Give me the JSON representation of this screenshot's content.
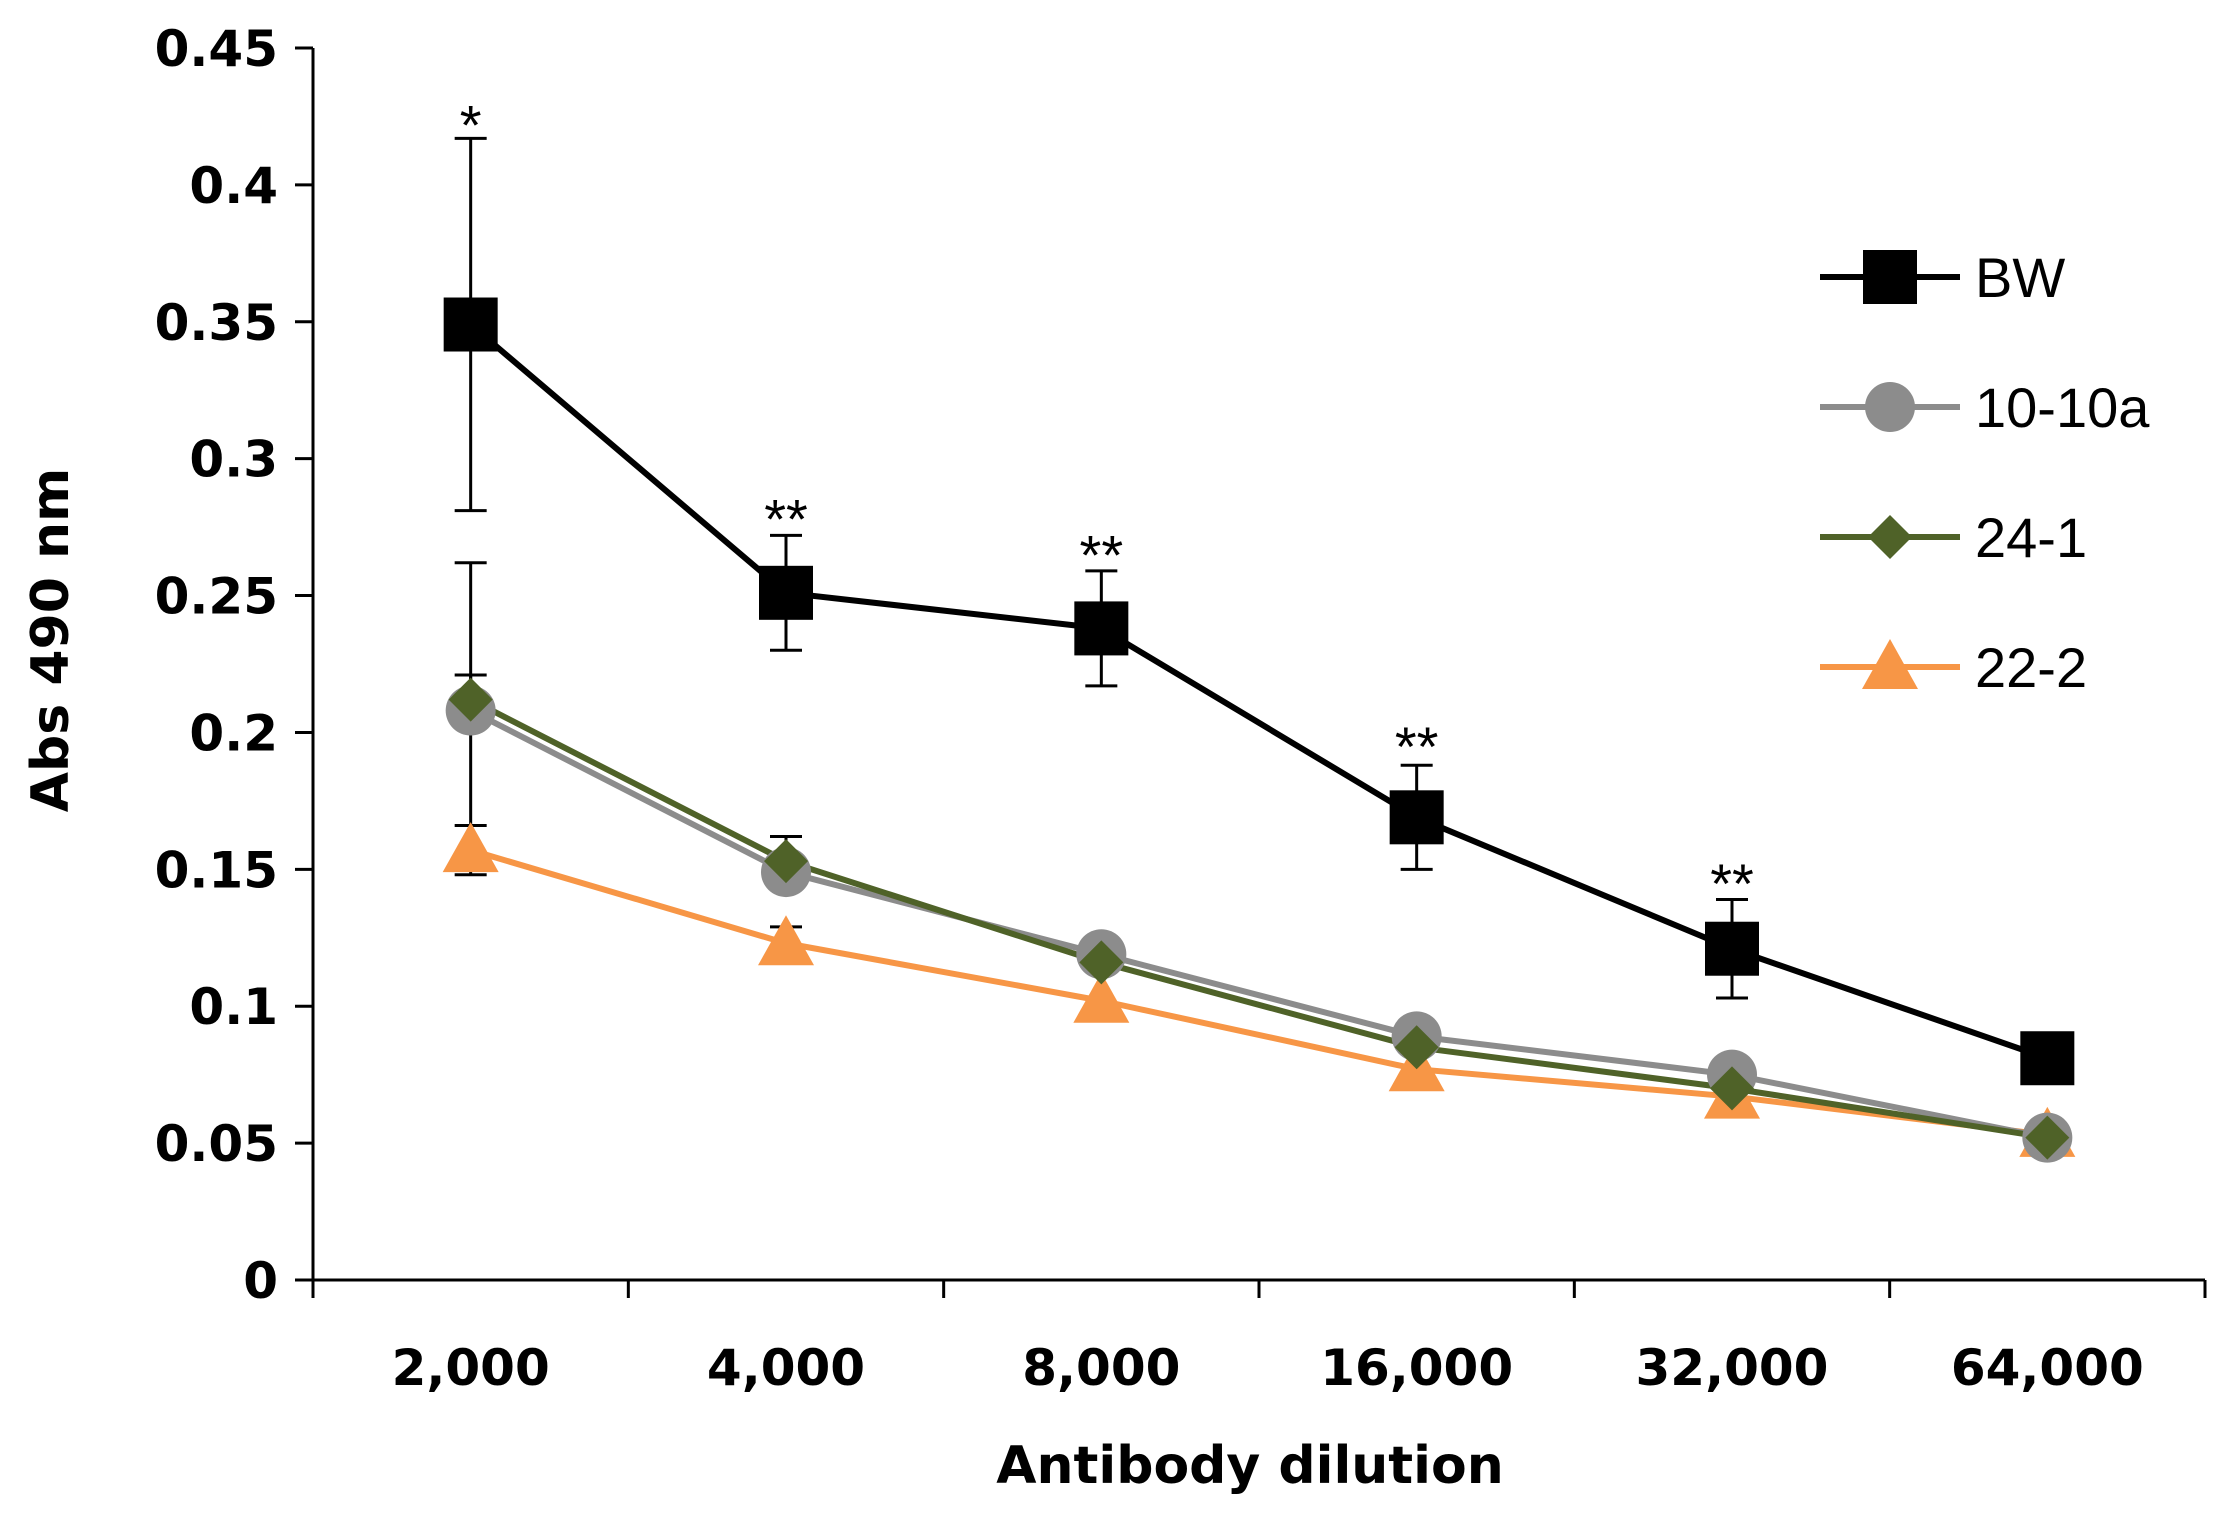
{
  "chart_data": {
    "type": "line",
    "title": "",
    "xlabel": "Antibody dilution",
    "ylabel": "Abs 490 nm",
    "categories": [
      "2,000",
      "4,000",
      "8,000",
      "16,000",
      "32,000",
      "64,000"
    ],
    "ylim": [
      0,
      0.45
    ],
    "yticks": [
      0,
      0.05,
      0.1,
      0.15,
      0.2,
      0.25,
      0.3,
      0.35,
      0.4,
      0.45
    ],
    "ytick_labels": [
      "0",
      "0.05",
      "0.1",
      "0.15",
      "0.2",
      "0.25",
      "0.3",
      "0.35",
      "0.4",
      "0.45"
    ],
    "grid": false,
    "legend": "right",
    "series": [
      {
        "name": "BW",
        "color": "#000000",
        "marker": "square",
        "values": [
          0.349,
          0.251,
          0.238,
          0.169,
          0.121,
          0.081
        ],
        "errors": [
          0.068,
          0.021,
          0.021,
          0.019,
          0.018,
          0.0
        ]
      },
      {
        "name": "10-10a",
        "color": "#8c8c8c",
        "marker": "circle",
        "values": [
          0.208,
          0.149,
          0.119,
          0.089,
          0.075,
          0.052
        ],
        "errors": [
          0.054,
          0.0,
          0.0,
          0.0,
          0.0,
          0.0
        ]
      },
      {
        "name": "24-1",
        "color": "#4f6228",
        "marker": "diamond",
        "values": [
          0.212,
          0.153,
          0.116,
          0.085,
          0.07,
          0.052
        ],
        "errors": [
          0.009,
          0.009,
          0.0,
          0.0,
          0.0,
          0.0
        ]
      },
      {
        "name": "22-2",
        "color": "#f79646",
        "marker": "triangle",
        "values": [
          0.157,
          0.123,
          0.102,
          0.077,
          0.067,
          0.053
        ],
        "errors": [
          0.009,
          0.006,
          0.0,
          0.0,
          0.0,
          0.0
        ]
      }
    ],
    "annotations": [
      {
        "category_index": 0,
        "text": "*",
        "y": 0.425
      },
      {
        "category_index": 1,
        "text": "**",
        "y": 0.281
      },
      {
        "category_index": 2,
        "text": "**",
        "y": 0.268
      },
      {
        "category_index": 3,
        "text": "**",
        "y": 0.198
      },
      {
        "category_index": 4,
        "text": "**",
        "y": 0.148
      }
    ]
  }
}
